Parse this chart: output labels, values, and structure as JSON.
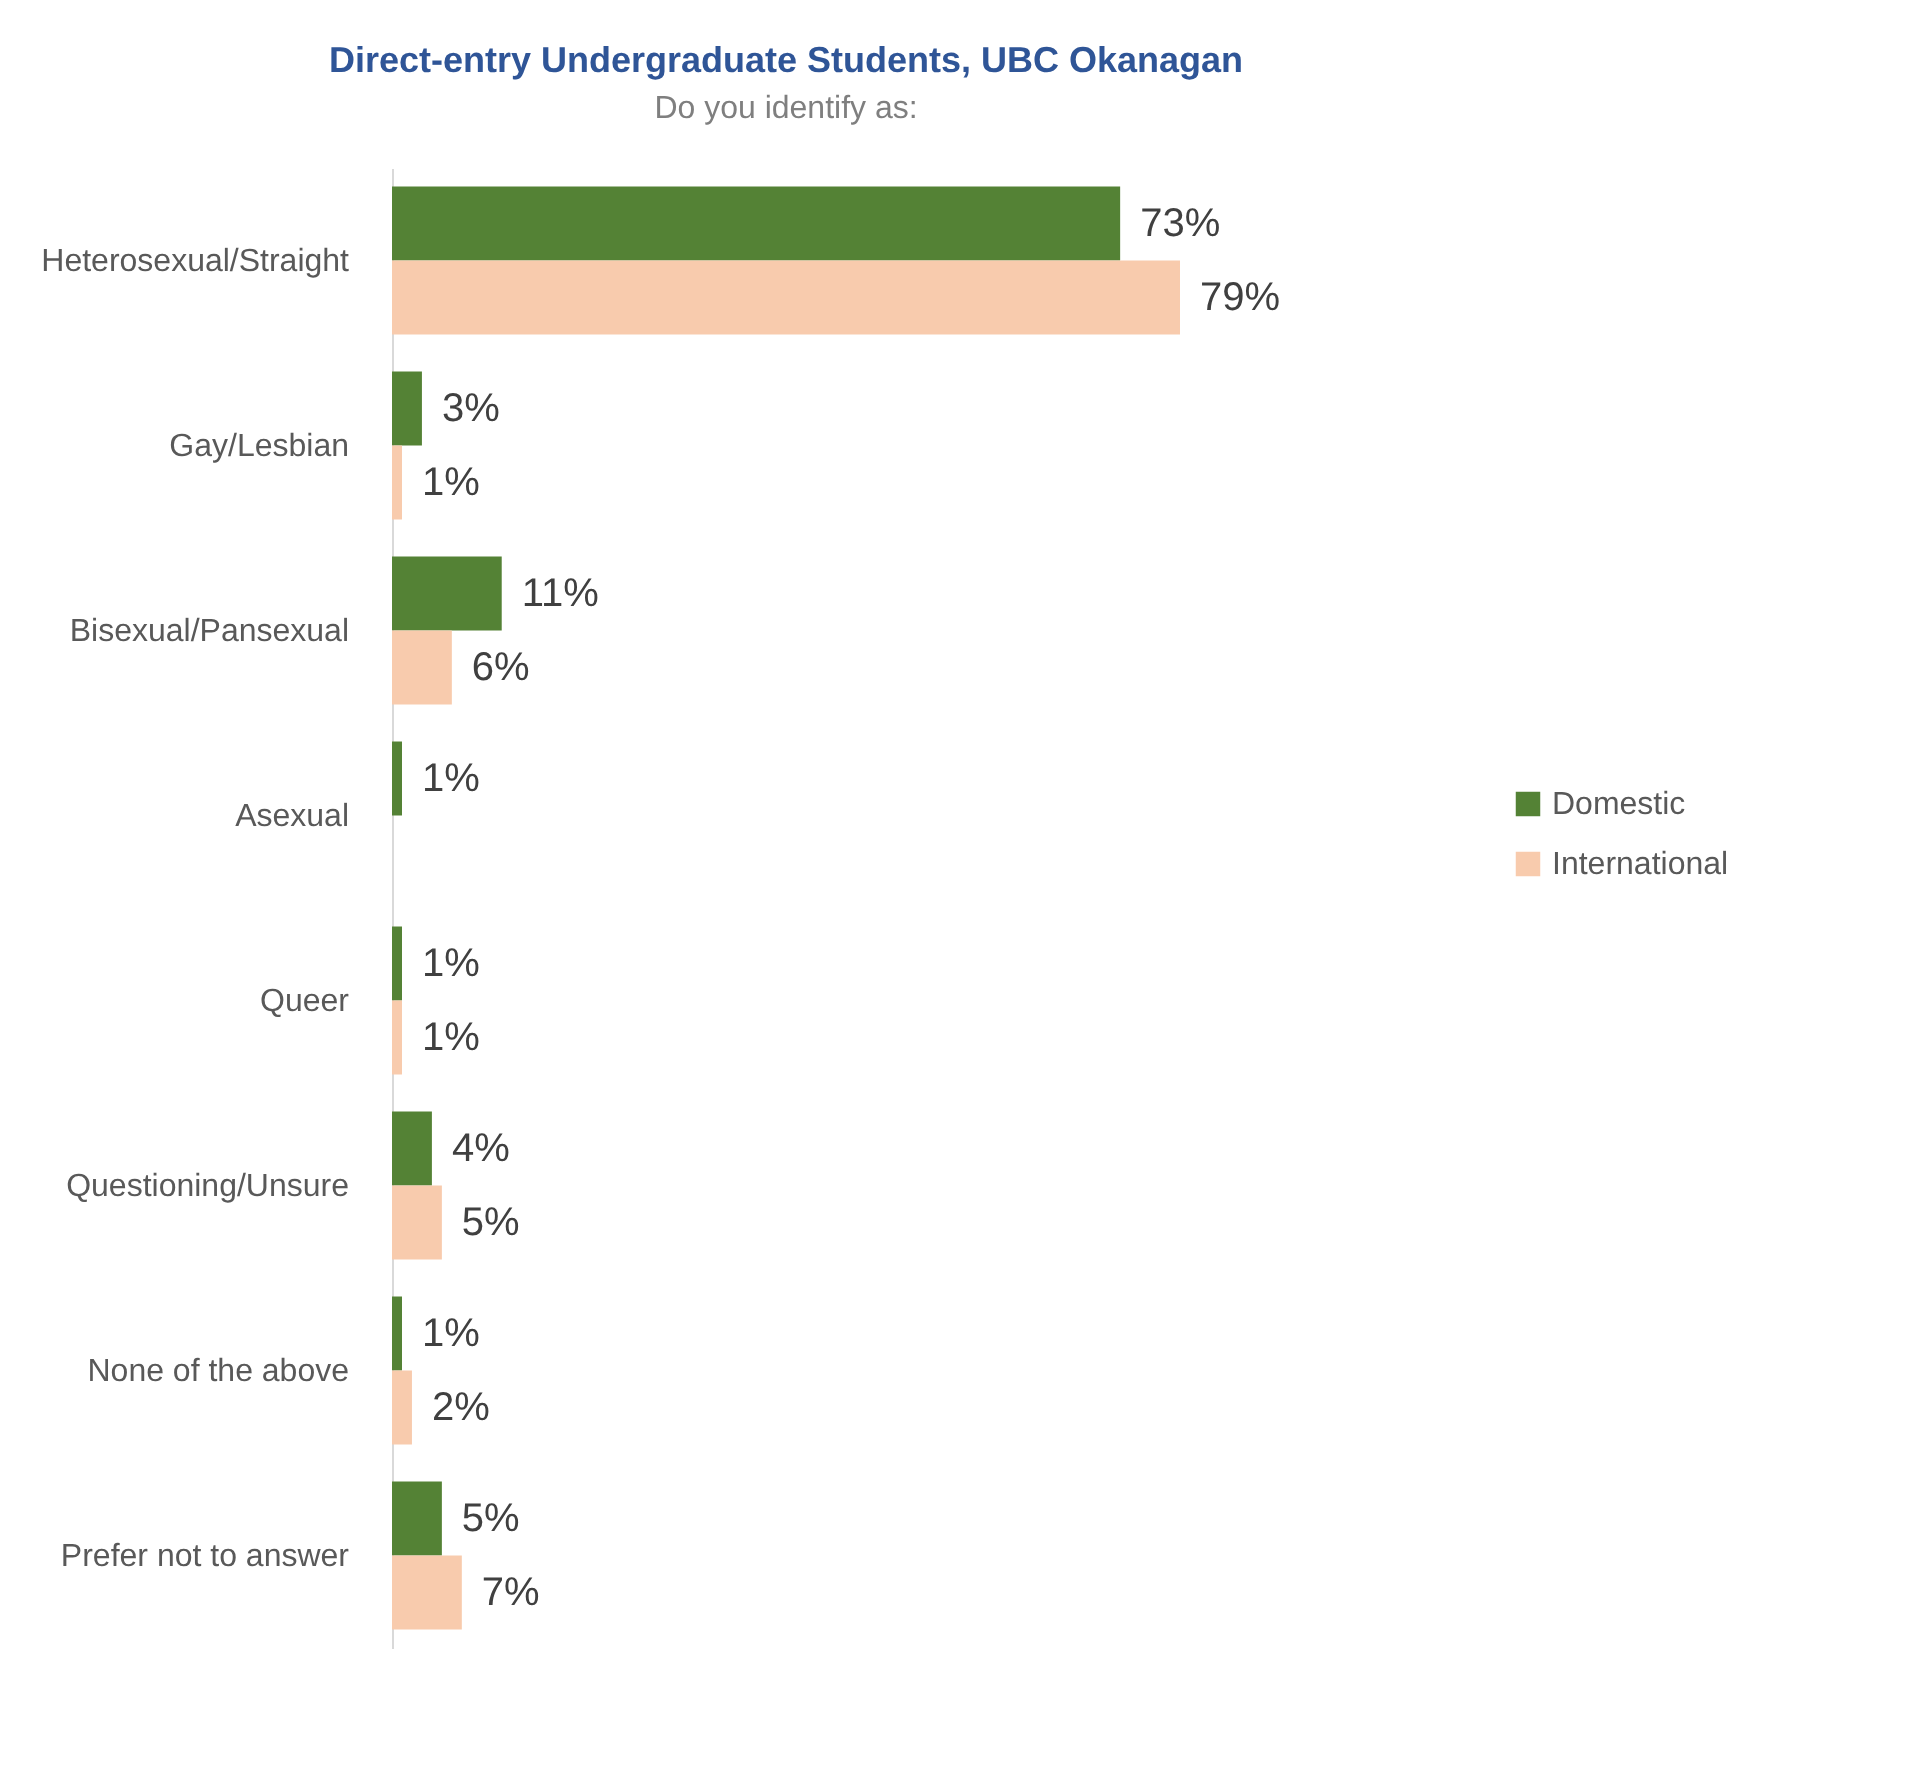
{
  "chart_data": {
    "type": "bar",
    "orientation": "horizontal",
    "title": "Direct-entry Undergraduate Students, UBC Okanagan",
    "subtitle": "Do you identify as:",
    "categories": [
      "Heterosexual/Straight",
      "Gay/Lesbian",
      "Bisexual/Pansexual",
      "Asexual",
      "Queer",
      "Questioning/Unsure",
      "None of the above",
      "Prefer not to answer"
    ],
    "series": [
      {
        "name": "Domestic",
        "color": "#548235",
        "values": [
          73,
          3,
          11,
          1,
          1,
          4,
          1,
          5
        ],
        "value_labels": [
          "73%",
          "3%",
          "11%",
          "1%",
          "1%",
          "4%",
          "1%",
          "5%"
        ]
      },
      {
        "name": "International",
        "color": "#f8cbad",
        "values": [
          79,
          1,
          6,
          null,
          1,
          5,
          2,
          7
        ],
        "value_labels": [
          "79%",
          "1%",
          "6%",
          null,
          "1%",
          "5%",
          "2%",
          "7%"
        ]
      }
    ],
    "legend": "right"
  }
}
